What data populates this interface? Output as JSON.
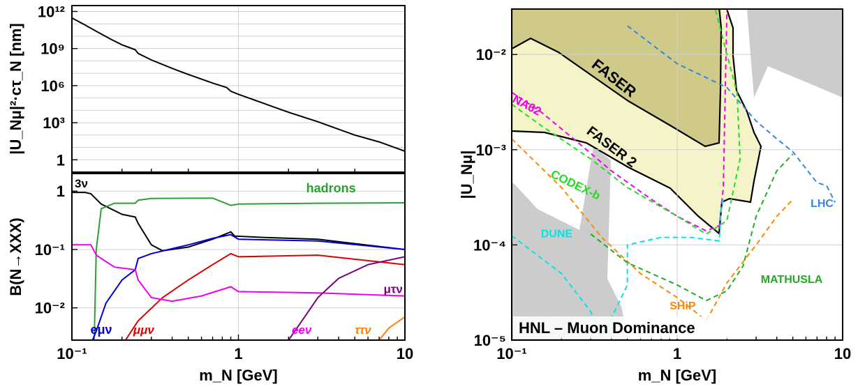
{
  "chart_data": [
    {
      "type": "line",
      "panel": "top-left",
      "x_scale": "log",
      "y_scale": "log",
      "xlim": [
        0.1,
        10
      ],
      "ylim": [
        0.1,
        3000000000000.0
      ],
      "ylabel": "|U_Nμ|²·cτ_N [nm]",
      "yticks": [
        {
          "value": 1,
          "label": "1"
        },
        {
          "value": 1000,
          "label": "10³"
        },
        {
          "value": 1000000,
          "label": "10⁶"
        },
        {
          "value": 1000000000,
          "label": "10⁹"
        },
        {
          "value": 1000000000000,
          "label": "10¹²"
        }
      ],
      "grid": true,
      "series": [
        {
          "color": "#000000",
          "points": [
            [
              0.1,
              300000000000.0
            ],
            [
              0.12,
              80000000000.0
            ],
            [
              0.14,
              25000000000.0
            ],
            [
              0.17,
              6000000000.0
            ],
            [
              0.2,
              2000000000.0
            ],
            [
              0.24,
              800000000.0
            ],
            [
              0.25,
              400000000.0
            ],
            [
              0.3,
              120000000.0
            ],
            [
              0.4,
              25000000.0
            ],
            [
              0.5,
              8000000.0
            ],
            [
              0.7,
              1600000.0
            ],
            [
              0.85,
              700000.0
            ],
            [
              0.9,
              350000.0
            ],
            [
              1.0,
              200000.0
            ],
            [
              1.5,
              28000.0
            ],
            [
              2,
              7000.0
            ],
            [
              3,
              1200.0
            ],
            [
              5,
              100
            ],
            [
              7,
              28
            ],
            [
              10,
              5
            ]
          ]
        }
      ]
    },
    {
      "type": "line",
      "panel": "bottom-left",
      "x_scale": "log",
      "y_scale": "log",
      "xlim": [
        0.1,
        10
      ],
      "ylim": [
        0.0028,
        2
      ],
      "xlabel": "m_N [GeV]",
      "ylabel": "B(N→XXX)",
      "xticks": [
        {
          "value": 0.1,
          "label": "10⁻¹"
        },
        {
          "value": 1,
          "label": "1"
        },
        {
          "value": 10,
          "label": "10"
        }
      ],
      "yticks": [
        {
          "value": 0.01,
          "label": "10⁻²"
        },
        {
          "value": 0.1,
          "label": "10⁻¹"
        },
        {
          "value": 1,
          "label": "1"
        }
      ],
      "grid": true,
      "series": [
        {
          "name": "3ν",
          "color": "#000000",
          "points": [
            [
              0.1,
              0.95
            ],
            [
              0.12,
              0.95
            ],
            [
              0.13,
              0.9
            ],
            [
              0.15,
              0.6
            ],
            [
              0.2,
              0.4
            ],
            [
              0.24,
              0.36
            ],
            [
              0.25,
              0.28
            ],
            [
              0.3,
              0.12
            ],
            [
              0.35,
              0.095
            ],
            [
              0.5,
              0.11
            ],
            [
              0.7,
              0.15
            ],
            [
              0.9,
              0.2
            ],
            [
              0.95,
              0.17
            ],
            [
              1.5,
              0.16
            ],
            [
              3,
              0.15
            ],
            [
              10,
              0.1
            ]
          ]
        },
        {
          "name": "hadrons",
          "color": "#2ca02c",
          "points": [
            [
              0.135,
              0.001
            ],
            [
              0.14,
              0.1
            ],
            [
              0.15,
              0.5
            ],
            [
              0.18,
              0.62
            ],
            [
              0.24,
              0.62
            ],
            [
              0.25,
              0.7
            ],
            [
              0.3,
              0.75
            ],
            [
              0.7,
              0.76
            ],
            [
              0.9,
              0.57
            ],
            [
              1,
              0.6
            ],
            [
              3,
              0.62
            ],
            [
              10,
              0.63
            ]
          ]
        },
        {
          "name": "eμν",
          "color": "#0000dd",
          "points": [
            [
              0.133,
              0.0028
            ],
            [
              0.14,
              0.004
            ],
            [
              0.16,
              0.012
            ],
            [
              0.2,
              0.03
            ],
            [
              0.24,
              0.045
            ],
            [
              0.25,
              0.07
            ],
            [
              0.3,
              0.085
            ],
            [
              0.5,
              0.12
            ],
            [
              0.7,
              0.155
            ],
            [
              0.9,
              0.18
            ],
            [
              1,
              0.15
            ],
            [
              3,
              0.14
            ],
            [
              10,
              0.1
            ]
          ]
        },
        {
          "name": "μμν",
          "color": "#dd0000",
          "points": [
            [
              0.21,
              0.0028
            ],
            [
              0.25,
              0.006
            ],
            [
              0.35,
              0.015
            ],
            [
              0.5,
              0.03
            ],
            [
              0.7,
              0.055
            ],
            [
              0.9,
              0.085
            ],
            [
              1,
              0.075
            ],
            [
              3,
              0.08
            ],
            [
              10,
              0.055
            ]
          ]
        },
        {
          "name": "eeν",
          "color": "#ee00ee",
          "points": [
            [
              0.1,
              0.12
            ],
            [
              0.13,
              0.12
            ],
            [
              0.14,
              0.08
            ],
            [
              0.18,
              0.05
            ],
            [
              0.24,
              0.045
            ],
            [
              0.25,
              0.03
            ],
            [
              0.3,
              0.015
            ],
            [
              0.4,
              0.013
            ],
            [
              0.6,
              0.016
            ],
            [
              0.9,
              0.023
            ],
            [
              1,
              0.019
            ],
            [
              3,
              0.018
            ],
            [
              10,
              0.016
            ]
          ]
        },
        {
          "name": "μτν",
          "color": "#7a007a",
          "points": [
            [
              2.0,
              0.0028
            ],
            [
              2.5,
              0.007
            ],
            [
              3,
              0.015
            ],
            [
              4,
              0.032
            ],
            [
              6,
              0.055
            ],
            [
              10,
              0.075
            ]
          ]
        },
        {
          "name": "ττν",
          "color": "#ff8000",
          "points": [
            [
              7.0,
              0.0028
            ],
            [
              8,
              0.0045
            ],
            [
              10,
              0.007
            ]
          ]
        }
      ],
      "labels": [
        {
          "text": "3ν",
          "color": "#000000"
        },
        {
          "text": "hadrons",
          "color": "#2ca02c"
        },
        {
          "text": "eμν",
          "color": "#0000dd"
        },
        {
          "text": "μμν",
          "color": "#dd0000"
        },
        {
          "text": "eeν",
          "color": "#ee00ee"
        },
        {
          "text": "μτν",
          "color": "#7a007a"
        },
        {
          "text": "ττν",
          "color": "#ff8000"
        }
      ]
    },
    {
      "type": "line",
      "panel": "right",
      "x_scale": "log",
      "y_scale": "log",
      "xlim": [
        0.1,
        10
      ],
      "ylim": [
        1e-05,
        0.03
      ],
      "xlabel": "m_N [GeV]",
      "ylabel": "|U_Nμ|",
      "xticks": [
        {
          "value": 0.1,
          "label": "10⁻¹"
        },
        {
          "value": 1,
          "label": "1"
        },
        {
          "value": 10,
          "label": "10"
        }
      ],
      "yticks": [
        {
          "value": 1e-05,
          "label": "10⁻⁵"
        },
        {
          "value": 0.0001,
          "label": "10⁻⁴"
        },
        {
          "value": 0.001,
          "label": "10⁻³"
        },
        {
          "value": 0.01,
          "label": "10⁻²"
        }
      ],
      "grid": true,
      "title_box": "HNL – Muon Dominance",
      "regions": [
        {
          "name": "FASER",
          "type": "filled",
          "fill": "#cfc98a"
        },
        {
          "name": "FASER 2",
          "type": "filled",
          "fill": "#f5f3c8"
        }
      ],
      "series": [
        {
          "name": "NA62",
          "color": "#ee00ee",
          "style": "dashed",
          "points": [
            [
              0.1,
              0.004
            ],
            [
              0.15,
              0.0025
            ],
            [
              0.25,
              0.0012
            ],
            [
              0.4,
              0.0006
            ],
            [
              0.7,
              0.0003
            ],
            [
              1,
              0.0002
            ],
            [
              1.5,
              0.00014
            ],
            [
              1.8,
              0.00016
            ],
            [
              1.9,
              0.0004
            ],
            [
              1.95,
              0.0036
            ],
            [
              2.0,
              0.03
            ]
          ]
        },
        {
          "name": "CODEX-b",
          "color": "#22dd22",
          "style": "dashed",
          "points": [
            [
              0.1,
              0.003
            ],
            [
              0.15,
              0.0018
            ],
            [
              0.3,
              0.0008
            ],
            [
              0.5,
              0.0004
            ],
            [
              1,
              0.0002
            ],
            [
              1.5,
              0.00013
            ],
            [
              2,
              0.00018
            ],
            [
              2.4,
              0.0008
            ],
            [
              2.3,
              0.004
            ],
            [
              2.0,
              0.01
            ],
            [
              1.7,
              0.03
            ]
          ]
        },
        {
          "name": "DUNE",
          "color": "#00e5e5",
          "style": "dashed",
          "points": [
            [
              0.1,
              0.000125
            ],
            [
              0.2,
              5e-05
            ],
            [
              0.3,
              2e-05
            ],
            [
              0.35,
              1.05e-05
            ],
            [
              0.5,
              3.8e-05
            ],
            [
              0.5,
              0.0001
            ],
            [
              0.8,
              0.00012
            ],
            [
              1.2,
              0.00012
            ],
            [
              1.8,
              0.00011
            ],
            [
              1.85,
              0.00025
            ],
            [
              1.9,
              0.0003
            ]
          ]
        },
        {
          "name": "SHiP",
          "color": "#ff8800",
          "style": "dashed",
          "points": [
            [
              0.1,
              0.0013
            ],
            [
              0.2,
              0.0004
            ],
            [
              0.35,
              0.00012
            ],
            [
              0.6,
              5e-05
            ],
            [
              1.0,
              2.8e-05
            ],
            [
              1.5,
              1.6e-05
            ],
            [
              2,
              4e-05
            ],
            [
              3,
              0.0001
            ],
            [
              4,
              0.0002
            ],
            [
              5,
              0.0003
            ]
          ]
        },
        {
          "name": "MATHUSLA",
          "color": "#22aa22",
          "style": "dashed",
          "points": [
            [
              0.3,
              0.00013
            ],
            [
              0.5,
              6.5e-05
            ],
            [
              1,
              3.8e-05
            ],
            [
              1.5,
              2.6e-05
            ],
            [
              2,
              3.3e-05
            ],
            [
              2.5,
              6e-05
            ],
            [
              3,
              0.0002
            ],
            [
              4,
              0.0006
            ],
            [
              5,
              0.0009
            ]
          ]
        },
        {
          "name": "LHC",
          "color": "#3388dd",
          "style": "dashed",
          "points": [
            [
              0.5,
              0.02
            ],
            [
              1,
              0.008
            ],
            [
              2,
              0.0045
            ],
            [
              3,
              0.002
            ],
            [
              4,
              0.0013
            ],
            [
              5,
              0.00095
            ],
            [
              7,
              0.00045
            ],
            [
              8,
              0.00042
            ],
            [
              9,
              0.00028
            ]
          ]
        }
      ],
      "labels": [
        {
          "text": "FASER",
          "color": "#000000"
        },
        {
          "text": "FASER 2",
          "color": "#000000"
        },
        {
          "text": "NA62",
          "color": "#ee00ee"
        },
        {
          "text": "CODEX-b",
          "color": "#22dd22"
        },
        {
          "text": "DUNE",
          "color": "#00e5e5"
        },
        {
          "text": "SHiP",
          "color": "#ff8800"
        },
        {
          "text": "MATHUSLA",
          "color": "#22aa22"
        },
        {
          "text": "LHC",
          "color": "#3388dd"
        }
      ]
    }
  ]
}
